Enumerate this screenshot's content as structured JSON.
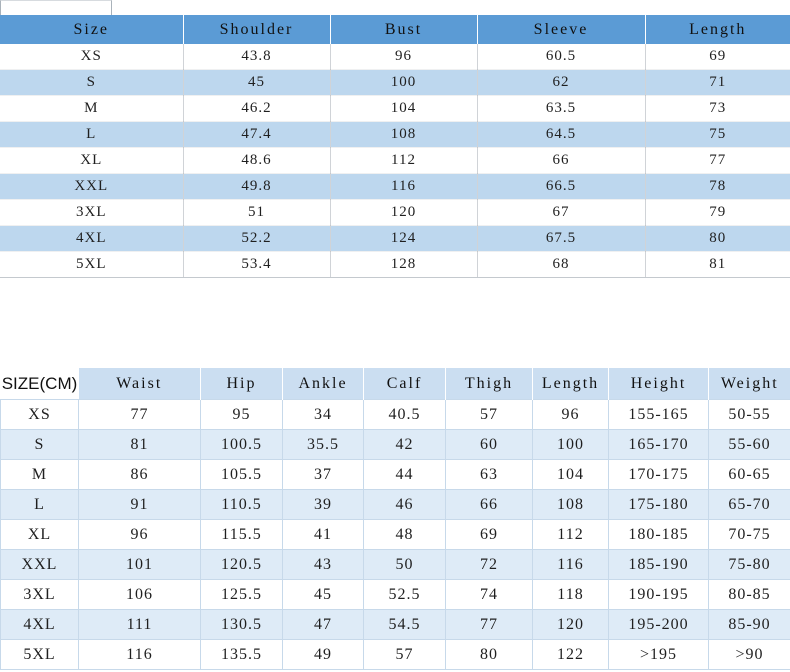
{
  "palette": {
    "table1_header_bg": "#5B9BD5",
    "table1_stripe_bg": "#BDD7EE",
    "table2_header_bg": "#CBDEF1",
    "table2_stripe_bg": "#DEEBF7",
    "grid_line": "#C7D9EA",
    "text": "#1F1F1F"
  },
  "table1": {
    "title": "garment-size-chart",
    "headers": [
      "Size",
      "Shoulder",
      "Bust",
      "Sleeve",
      "Length"
    ],
    "rows": [
      [
        "XS",
        "43.8",
        "96",
        "60.5",
        "69"
      ],
      [
        "S",
        "45",
        "100",
        "62",
        "71"
      ],
      [
        "M",
        "46.2",
        "104",
        "63.5",
        "73"
      ],
      [
        "L",
        "47.4",
        "108",
        "64.5",
        "75"
      ],
      [
        "XL",
        "48.6",
        "112",
        "66",
        "77"
      ],
      [
        "XXL",
        "49.8",
        "116",
        "66.5",
        "78"
      ],
      [
        "3XL",
        "51",
        "120",
        "67",
        "79"
      ],
      [
        "4XL",
        "52.2",
        "124",
        "67.5",
        "80"
      ],
      [
        "5XL",
        "53.4",
        "128",
        "68",
        "81"
      ]
    ]
  },
  "table2": {
    "title": "body-measurements-chart",
    "headers": [
      "SIZE(CM)",
      "Waist",
      "Hip",
      "Ankle",
      "Calf",
      "Thigh",
      "Length",
      "Height",
      "Weight"
    ],
    "rows": [
      [
        "XS",
        "77",
        "95",
        "34",
        "40.5",
        "57",
        "96",
        "155-165",
        "50-55"
      ],
      [
        "S",
        "81",
        "100.5",
        "35.5",
        "42",
        "60",
        "100",
        "165-170",
        "55-60"
      ],
      [
        "M",
        "86",
        "105.5",
        "37",
        "44",
        "63",
        "104",
        "170-175",
        "60-65"
      ],
      [
        "L",
        "91",
        "110.5",
        "39",
        "46",
        "66",
        "108",
        "175-180",
        "65-70"
      ],
      [
        "XL",
        "96",
        "115.5",
        "41",
        "48",
        "69",
        "112",
        "180-185",
        "70-75"
      ],
      [
        "XXL",
        "101",
        "120.5",
        "43",
        "50",
        "72",
        "116",
        "185-190",
        "75-80"
      ],
      [
        "3XL",
        "106",
        "125.5",
        "45",
        "52.5",
        "74",
        "118",
        "190-195",
        "80-85"
      ],
      [
        "4XL",
        "111",
        "130.5",
        "47",
        "54.5",
        "77",
        "120",
        "195-200",
        "85-90"
      ],
      [
        "5XL",
        "116",
        "135.5",
        "49",
        "57",
        "80",
        "122",
        ">195",
        ">90"
      ]
    ]
  }
}
